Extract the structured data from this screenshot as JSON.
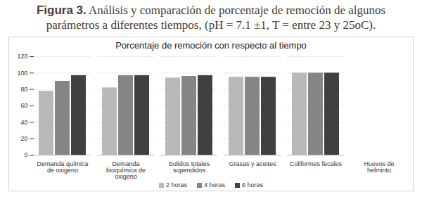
{
  "chart_data": {
    "type": "bar",
    "figure_label": "Figura 3.",
    "caption": "Análisis y comparación de porcentaje de remoción de algunos parámetros a diferentes tiempos, (pH = 7.1 ±1, T = entre 23 y 25oC).",
    "title": "Porcentaje de remoción con respecto al tiempo",
    "categories": [
      "Demanda química de oxigeno",
      "Demanda bioquímica de oxigeno",
      "Solidos totales supendidos",
      "Grasas y aceites",
      "Coliformes fecales",
      "Huevos de helminto"
    ],
    "series": [
      {
        "name": "2 horas",
        "color": "#b8b8b8",
        "values": [
          78,
          82,
          94,
          95,
          100,
          null
        ]
      },
      {
        "name": "4 horas",
        "color": "#858585",
        "values": [
          90,
          97,
          96,
          95,
          100,
          null
        ]
      },
      {
        "name": "6 horas",
        "color": "#404040",
        "values": [
          97,
          97,
          97,
          95,
          100,
          null
        ]
      }
    ],
    "ylim": [
      0,
      120
    ],
    "yticks": [
      0,
      20,
      40,
      60,
      80,
      100,
      120
    ],
    "grid": true,
    "legend": "bottom"
  }
}
